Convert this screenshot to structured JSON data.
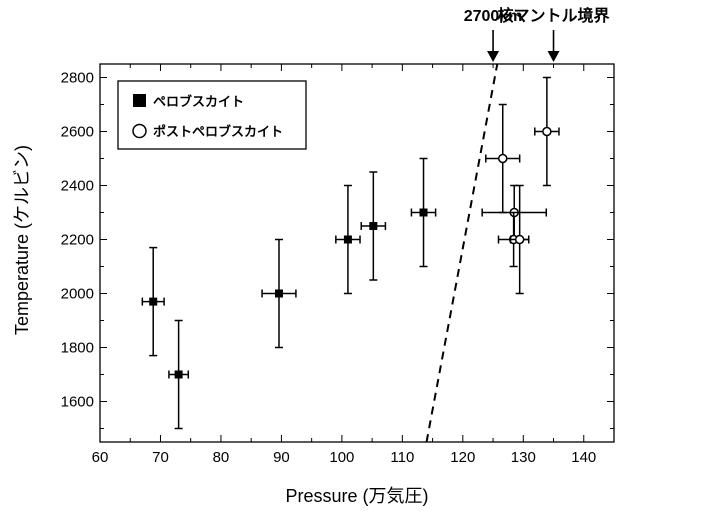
{
  "chart_data": {
    "type": "scatter",
    "title": "",
    "xlabel": "Pressure (万気圧)",
    "ylabel": "Temperature (ケルビン)",
    "xlim": [
      60,
      145
    ],
    "ylim": [
      1450,
      2850
    ],
    "x_ticks": [
      60,
      70,
      80,
      90,
      100,
      110,
      120,
      130,
      140
    ],
    "y_ticks": [
      1600,
      1800,
      2000,
      2200,
      2400,
      2600,
      2800
    ],
    "grid": false,
    "legend_position": "top-left",
    "series": [
      {
        "name": "ペロブスカイト",
        "marker": "filled-square",
        "color": "#000000",
        "points": [
          {
            "x": 68.8,
            "y": 1970,
            "xerr": 1.8,
            "yerr": 200
          },
          {
            "x": 73.0,
            "y": 1700,
            "xerr": 1.6,
            "yerr": 200
          },
          {
            "x": 89.6,
            "y": 2000,
            "xerr": 2.8,
            "yerr": 200
          },
          {
            "x": 101.0,
            "y": 2200,
            "xerr": 2.0,
            "yerr": 200
          },
          {
            "x": 105.2,
            "y": 2250,
            "xerr": 2.0,
            "yerr": 200
          },
          {
            "x": 113.5,
            "y": 2300,
            "xerr": 2.0,
            "yerr": 200
          }
        ]
      },
      {
        "name": "ポストペロブスカイト",
        "marker": "open-circle",
        "color": "#000000",
        "points": [
          {
            "x": 126.6,
            "y": 2500,
            "xerr": 2.8,
            "yerr": 200
          },
          {
            "x": 128.5,
            "y": 2300,
            "xerr": 5.3,
            "yerr": 100
          },
          {
            "x": 128.4,
            "y": 2200,
            "xerr": 2.5,
            "yerr": 100
          },
          {
            "x": 129.4,
            "y": 2200,
            "xerr": 1.5,
            "yerr": 200
          },
          {
            "x": 133.9,
            "y": 2600,
            "xerr": 2.0,
            "yerr": 200
          }
        ]
      }
    ],
    "boundary_line": {
      "style": "dashed",
      "points": [
        {
          "x": 114.0,
          "y": 1450
        },
        {
          "x": 125.7,
          "y": 2850
        }
      ]
    },
    "annotations": [
      {
        "text": "2700km",
        "arrow_x": 125.0
      },
      {
        "text": "核マントル境界",
        "arrow_x": 135.0
      }
    ]
  }
}
